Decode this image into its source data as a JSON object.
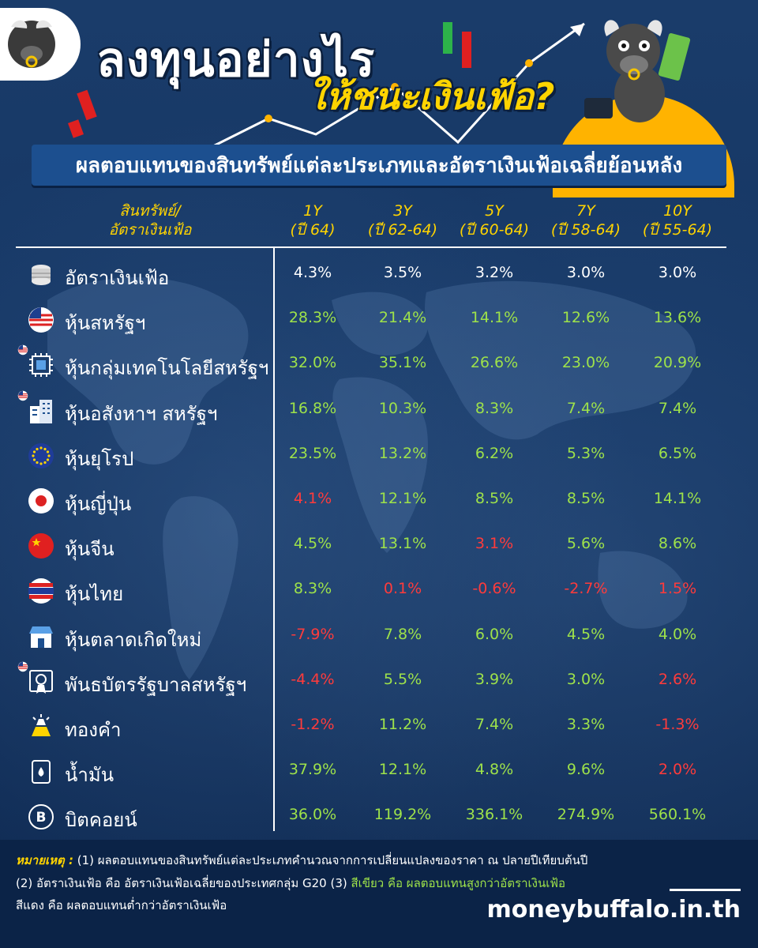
{
  "header": {
    "title_line1": "ลงทุนอย่างไร",
    "title_line2": "ให้ชนะเงินเฟ้อ?",
    "banner": "ผลตอบแทนของสินทรัพย์แต่ละประเภทและอัตราเงินเฟ้อเฉลี่ยย้อนหลัง"
  },
  "table": {
    "header_asset": [
      "สินทรัพย์/",
      "อัตราเงินเฟ้อ"
    ],
    "columns": [
      {
        "period": "1Y",
        "years": "(ปี 64)"
      },
      {
        "period": "3Y",
        "years": "(ปี 62-64)"
      },
      {
        "period": "5Y",
        "years": "(ปี 60-64)"
      },
      {
        "period": "7Y",
        "years": "(ปี 58-64)"
      },
      {
        "period": "10Y",
        "years": "(ปี 55-64)"
      }
    ],
    "rows": [
      {
        "name": "อัตราเงินเฟ้อ",
        "icon": "coins-icon",
        "us_badge": false,
        "values": [
          "4.3%",
          "3.5%",
          "3.2%",
          "3.0%",
          "3.0%"
        ],
        "colors": [
          "white",
          "white",
          "white",
          "white",
          "white"
        ]
      },
      {
        "name": "หุ้นสหรัฐฯ",
        "icon": "us-flag-icon",
        "us_badge": false,
        "values": [
          "28.3%",
          "21.4%",
          "14.1%",
          "12.6%",
          "13.6%"
        ],
        "colors": [
          "green",
          "green",
          "green",
          "green",
          "green"
        ]
      },
      {
        "name": "หุ้นกลุ่มเทคโนโลยีสหรัฐฯ",
        "icon": "chip-icon",
        "us_badge": true,
        "values": [
          "32.0%",
          "35.1%",
          "26.6%",
          "23.0%",
          "20.9%"
        ],
        "colors": [
          "green",
          "green",
          "green",
          "green",
          "green"
        ]
      },
      {
        "name": "หุ้นอสังหาฯ สหรัฐฯ",
        "icon": "building-icon",
        "us_badge": true,
        "values": [
          "16.8%",
          "10.3%",
          "8.3%",
          "7.4%",
          "7.4%"
        ],
        "colors": [
          "green",
          "green",
          "green",
          "green",
          "green"
        ]
      },
      {
        "name": "หุ้นยุโรป",
        "icon": "eu-flag-icon",
        "us_badge": false,
        "values": [
          "23.5%",
          "13.2%",
          "6.2%",
          "5.3%",
          "6.5%"
        ],
        "colors": [
          "green",
          "green",
          "green",
          "green",
          "green"
        ]
      },
      {
        "name": "หุ้นญี่ปุ่น",
        "icon": "japan-flag-icon",
        "us_badge": false,
        "values": [
          "4.1%",
          "12.1%",
          "8.5%",
          "8.5%",
          "14.1%"
        ],
        "colors": [
          "red",
          "green",
          "green",
          "green",
          "green"
        ]
      },
      {
        "name": "หุ้นจีน",
        "icon": "china-flag-icon",
        "us_badge": false,
        "values": [
          "4.5%",
          "13.1%",
          "3.1%",
          "5.6%",
          "8.6%"
        ],
        "colors": [
          "green",
          "green",
          "red",
          "green",
          "green"
        ]
      },
      {
        "name": "หุ้นไทย",
        "icon": "thai-flag-icon",
        "us_badge": false,
        "values": [
          "8.3%",
          "0.1%",
          "-0.6%",
          "-2.7%",
          "1.5%"
        ],
        "colors": [
          "green",
          "red",
          "red",
          "red",
          "red"
        ]
      },
      {
        "name": "หุ้นตลาดเกิดใหม่",
        "icon": "market-icon",
        "us_badge": false,
        "values": [
          "-7.9%",
          "7.8%",
          "6.0%",
          "4.5%",
          "4.0%"
        ],
        "colors": [
          "red",
          "green",
          "green",
          "green",
          "green"
        ]
      },
      {
        "name": "พันธบัตรรัฐบาลสหรัฐฯ",
        "icon": "bond-icon",
        "us_badge": true,
        "values": [
          "-4.4%",
          "5.5%",
          "3.9%",
          "3.0%",
          "2.6%"
        ],
        "colors": [
          "red",
          "green",
          "green",
          "green",
          "red"
        ]
      },
      {
        "name": "ทองคำ",
        "icon": "gold-icon",
        "us_badge": false,
        "values": [
          "-1.2%",
          "11.2%",
          "7.4%",
          "3.3%",
          "-1.3%"
        ],
        "colors": [
          "red",
          "green",
          "green",
          "green",
          "red"
        ]
      },
      {
        "name": "น้ำมัน",
        "icon": "oil-icon",
        "us_badge": false,
        "values": [
          "37.9%",
          "12.1%",
          "4.8%",
          "9.6%",
          "2.0%"
        ],
        "colors": [
          "green",
          "green",
          "green",
          "green",
          "red"
        ]
      },
      {
        "name": "บิตคอยน์",
        "icon": "bitcoin-icon",
        "us_badge": false,
        "values": [
          "36.0%",
          "119.2%",
          "336.1%",
          "274.9%",
          "560.1%"
        ],
        "colors": [
          "green",
          "green",
          "green",
          "green",
          "green"
        ]
      }
    ]
  },
  "footer": {
    "note_label": "หมายเหตุ :",
    "note1": " (1) ผลตอบแทนของสินทรัพย์แต่ละประเภทคำนวณจากการเปลี่ยนแปลงของราคา ณ ปลายปีเทียบต้นปี",
    "note2a": "(2) อัตราเงินเฟ้อ คือ อัตราเงินเฟ้อเฉลี่ยของประเทศกลุ่ม G20 (3) ",
    "note2b": "สีเขียว คือ ผลตอบแทนสูงกว่าอัตราเงินเฟ้อ",
    "note3": "สีแดง คือ ผลตอบแทนต่ำกว่าอัตราเงินเฟ้อ",
    "brand": "moneybuffalo.in.th"
  },
  "colors": {
    "background": "#0f2a52",
    "title_yellow": "#ffd400",
    "above_inflation": "#9ee24a",
    "below_inflation": "#ff3b3b",
    "banner": "#1c4f8f"
  }
}
